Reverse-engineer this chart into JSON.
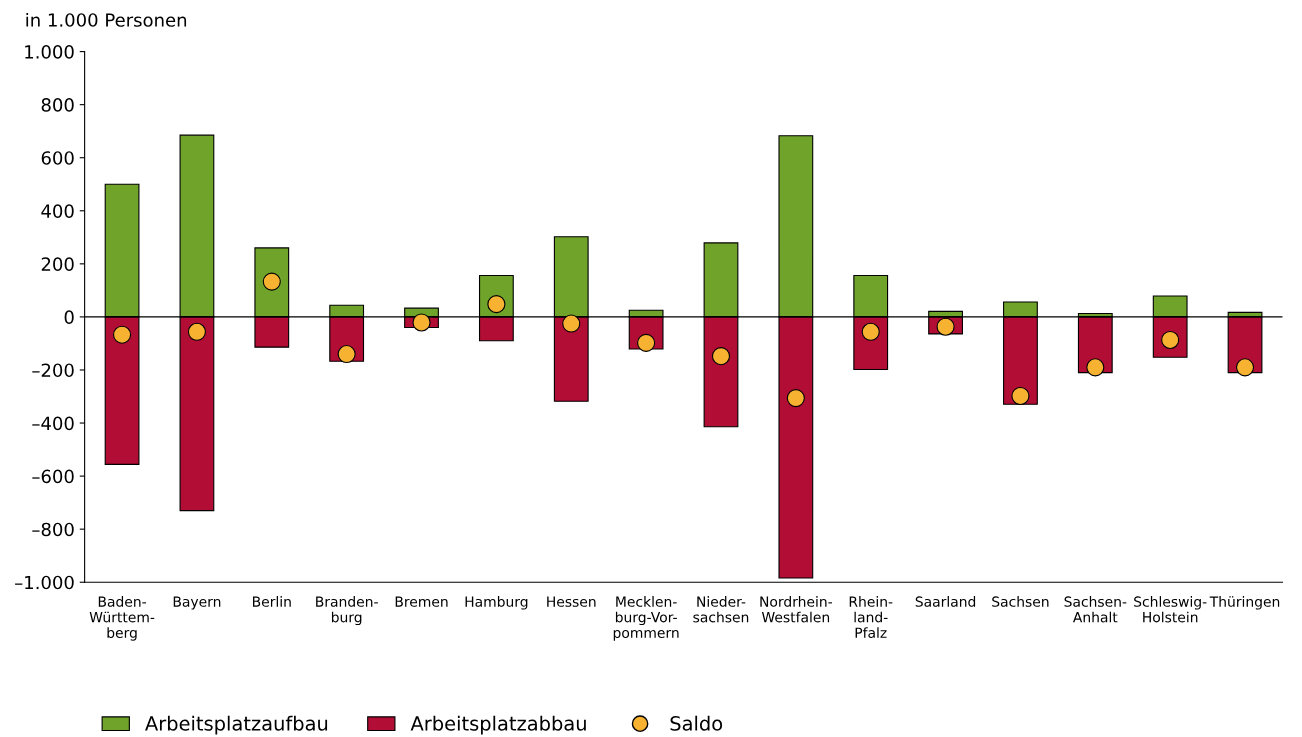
{
  "chart_data": {
    "type": "bar",
    "stacked": true,
    "ylabel": "in 1.000 Personen",
    "categories": [
      "Baden-\nWürttem-\nberg",
      "Bayern",
      "Berlin",
      "Branden-\nburg",
      "Bremen",
      "Hamburg",
      "Hessen",
      "Mecklen-\nburg-Vor-\npommern",
      "Nieder-\nsachsen",
      "Nordrhein-\nWestfalen",
      "Rhein-\nland-\nPfalz",
      "Saarland",
      "Sachsen",
      "Sachsen-\nAnhalt",
      "Schleswig-\nHolstein",
      "Thüringen"
    ],
    "series": [
      {
        "name": "Arbeitsplatzaufbau",
        "color": "#6fa32a",
        "values": [
          500,
          685,
          260,
          44,
          33,
          156,
          302,
          25,
          279,
          683,
          156,
          21,
          56,
          13,
          79,
          17
        ]
      },
      {
        "name": "Arbeitsplatzabbau",
        "color": "#b20d35",
        "values": [
          -556,
          -730,
          -114,
          -167,
          -40,
          -90,
          -318,
          -121,
          -414,
          -984,
          -198,
          -64,
          -329,
          -210,
          -152,
          -210
        ]
      },
      {
        "name": "Saldo",
        "type": "scatter",
        "marker": "circle",
        "color": "#f7b232",
        "values": [
          -67,
          -56,
          133,
          -140,
          -21,
          48,
          -25,
          -98,
          -148,
          -306,
          -56,
          -37,
          -298,
          -190,
          -87,
          -190
        ]
      }
    ],
    "ylim": [
      -1000,
      1000
    ],
    "yticks": [
      {
        "value": -1000,
        "label": "–1.000"
      },
      {
        "value": -800,
        "label": "–800"
      },
      {
        "value": -600,
        "label": "–600"
      },
      {
        "value": -400,
        "label": "–400"
      },
      {
        "value": -200,
        "label": "–200"
      },
      0,
      200,
      400,
      600,
      800,
      {
        "value": 1000,
        "label": "1.000"
      }
    ],
    "ref_lines": [
      {
        "axis": "y",
        "value": 0,
        "color": "#000000"
      }
    ],
    "grid": false,
    "legend": "bottom"
  }
}
